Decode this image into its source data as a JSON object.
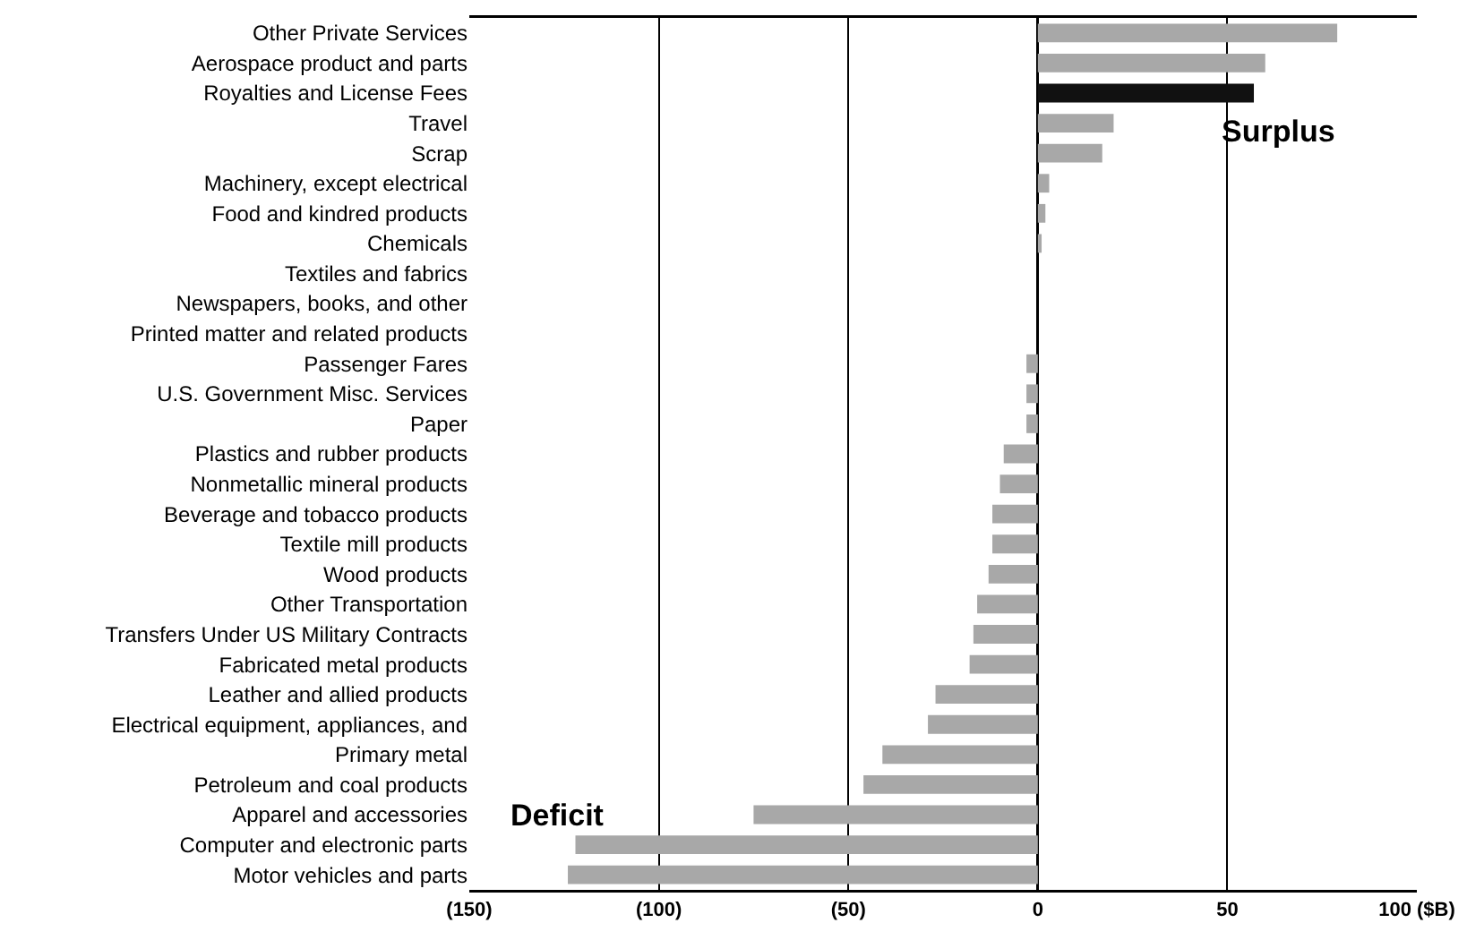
{
  "chart_data": {
    "type": "bar",
    "orientation": "horizontal",
    "categories": [
      "Other Private Services",
      "Aerospace product and parts",
      "Royalties and License Fees",
      "Travel",
      "Scrap",
      "Machinery, except electrical",
      "Food and kindred products",
      "Chemicals",
      "Textiles and fabrics",
      "Newspapers, books, and other",
      "Printed matter and related products",
      "Passenger Fares",
      "U.S. Government Misc. Services",
      "Paper",
      "Plastics and rubber products",
      "Nonmetallic mineral products",
      "Beverage and tobacco products",
      "Textile mill products",
      "Wood products",
      "Other Transportation",
      "Transfers Under US Military Contracts",
      "Fabricated metal products",
      "Leather and allied products",
      "Electrical equipment, appliances, and",
      "Primary metal",
      "Petroleum and coal products",
      "Apparel and accessories",
      "Computer and electronic parts",
      "Motor vehicles and parts"
    ],
    "values": [
      79,
      60,
      57,
      20,
      17,
      3,
      2,
      1,
      0,
      0,
      0,
      -3,
      -3,
      -3,
      -9,
      -10,
      -12,
      -12,
      -13,
      -16,
      -17,
      -18,
      -27,
      -29,
      -41,
      -46,
      -75,
      -122,
      -124
    ],
    "colors": [
      "#a8a8a8",
      "#a8a8a8",
      "#111111",
      "#a8a8a8",
      "#a8a8a8",
      "#a8a8a8",
      "#a8a8a8",
      "#a8a8a8",
      "#a8a8a8",
      "#a8a8a8",
      "#a8a8a8",
      "#a8a8a8",
      "#a8a8a8",
      "#a8a8a8",
      "#a8a8a8",
      "#a8a8a8",
      "#a8a8a8",
      "#a8a8a8",
      "#a8a8a8",
      "#a8a8a8",
      "#a8a8a8",
      "#a8a8a8",
      "#a8a8a8",
      "#a8a8a8",
      "#a8a8a8",
      "#a8a8a8",
      "#a8a8a8",
      "#a8a8a8",
      "#a8a8a8"
    ],
    "xlim": [
      -150,
      100
    ],
    "xticks": [
      {
        "value": -150,
        "label": "(150)"
      },
      {
        "value": -100,
        "label": "(100)"
      },
      {
        "value": -50,
        "label": "(50)"
      },
      0,
      50,
      {
        "value": 100,
        "label": "100 ($B)"
      }
    ],
    "grid": "x",
    "annotations": [
      "Surplus",
      "Deficit"
    ]
  }
}
